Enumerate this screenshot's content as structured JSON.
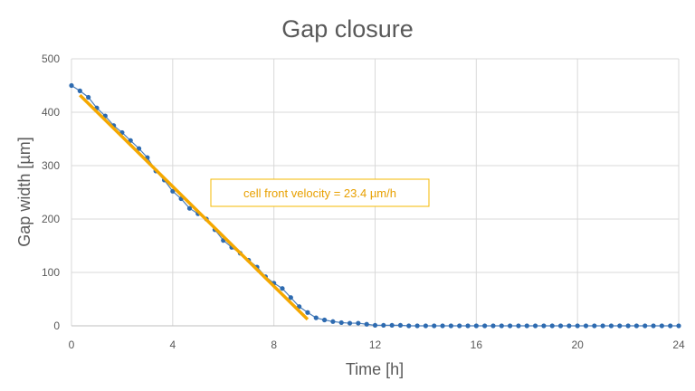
{
  "chart_data": {
    "type": "scatter",
    "title": "Gap closure",
    "xlabel": "Time [h]",
    "ylabel": "Gap width [µm]",
    "xlim": [
      0,
      24
    ],
    "ylim": [
      0,
      500
    ],
    "xticks": [
      0,
      4,
      8,
      12,
      16,
      20,
      24
    ],
    "yticks": [
      0,
      100,
      200,
      300,
      400,
      500
    ],
    "grid": true,
    "series": [
      {
        "x": [
          0,
          0.333,
          0.667,
          1.0,
          1.333,
          1.667,
          2.0,
          2.333,
          2.667,
          3.0,
          3.333,
          3.667,
          4.0,
          4.333,
          4.667,
          5.0,
          5.333,
          5.667,
          6.0,
          6.333,
          6.667,
          7.0,
          7.333,
          7.667,
          8.0,
          8.333,
          8.667,
          9.0,
          9.333,
          9.667,
          10.0,
          10.333,
          10.667,
          11.0,
          11.333,
          11.667,
          12.0,
          12.333,
          12.667,
          13.0,
          13.333,
          13.667,
          14.0,
          14.333,
          14.667,
          15.0,
          15.333,
          15.667,
          16.0,
          16.333,
          16.667,
          17.0,
          17.333,
          17.667,
          18.0,
          18.333,
          18.667,
          19.0,
          19.333,
          19.667,
          20.0,
          20.333,
          20.667,
          21.0,
          21.333,
          21.667,
          22.0,
          22.333,
          22.667,
          23.0,
          23.333,
          23.667,
          24.0
        ],
        "y": [
          450,
          440,
          428,
          408,
          393,
          375,
          362,
          347,
          332,
          315,
          290,
          273,
          252,
          238,
          220,
          210,
          200,
          180,
          160,
          147,
          136,
          123,
          110,
          92,
          80,
          70,
          53,
          36,
          25,
          15,
          11,
          8,
          6,
          5,
          5,
          3,
          1,
          1,
          1,
          1,
          0,
          0,
          0,
          0,
          0,
          0,
          0,
          0,
          0,
          0,
          0,
          0,
          0,
          0,
          0,
          0,
          0,
          0,
          0,
          0,
          0,
          0,
          0,
          0,
          0,
          0,
          0,
          0,
          0,
          0,
          0,
          0,
          0
        ],
        "color": "#2e6bb0"
      }
    ],
    "trendline": {
      "x": [
        0.333,
        9.333
      ],
      "y": [
        432,
        12
      ],
      "color": "#f5a800"
    },
    "annotation": {
      "text": "cell front velocity = 23.4 µm/h",
      "color": "#e8a000"
    }
  }
}
